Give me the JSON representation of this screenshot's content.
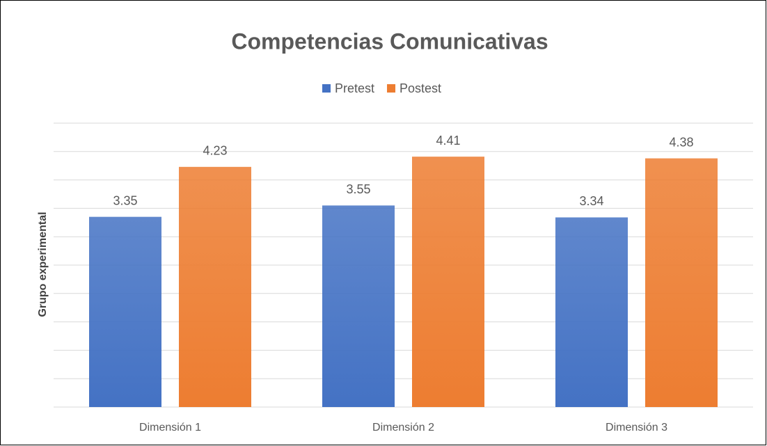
{
  "chart_data": {
    "type": "bar",
    "title": "Competencias Comunicativas",
    "y_label": "Grupo experimental",
    "categories": [
      "Dimensión 1",
      "Dimensión 2",
      "Dimensión 3"
    ],
    "series": [
      {
        "name": "Pretest",
        "color": "#4472c4",
        "values": [
          3.35,
          3.55,
          3.34
        ]
      },
      {
        "name": "Postest",
        "color": "#ed7d31",
        "values": [
          4.23,
          4.41,
          4.38
        ]
      }
    ],
    "ylim": [
      0,
      5
    ],
    "yticks": [
      0,
      0.5,
      1,
      1.5,
      2,
      2.5,
      3,
      3.5,
      4,
      4.5,
      5
    ],
    "grid": true,
    "legend": "top"
  }
}
